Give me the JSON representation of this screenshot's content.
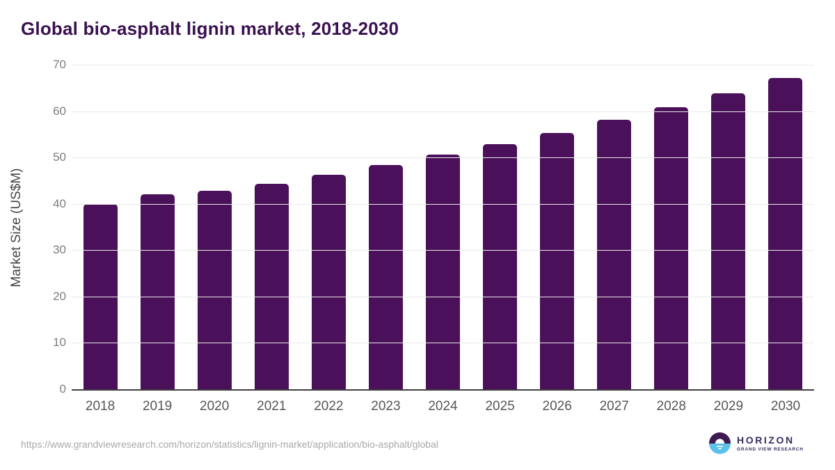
{
  "page": {
    "background": "#ffffff"
  },
  "header": {
    "title": "Global bio-asphalt lignin market, 2018-2030",
    "title_color": "#3a104f"
  },
  "chart_data": {
    "type": "bar",
    "title": "Global bio-asphalt lignin market, 2018-2030",
    "categories": [
      "2018",
      "2019",
      "2020",
      "2021",
      "2022",
      "2023",
      "2024",
      "2025",
      "2026",
      "2027",
      "2028",
      "2029",
      "2030"
    ],
    "values": [
      39.9,
      42.0,
      42.8,
      44.3,
      46.2,
      48.4,
      50.6,
      52.9,
      55.3,
      58.1,
      60.9,
      63.9,
      67.2
    ],
    "xlabel": "",
    "ylabel": "Market Size (US$M)",
    "ylim": [
      0,
      70
    ],
    "yticks": [
      0,
      10,
      20,
      30,
      40,
      50,
      60,
      70
    ],
    "grid": true,
    "legend": "none",
    "bar_color": "#4a1059",
    "gridline_color": "#e9e9e9",
    "axis_line_color": "#3f3f3f",
    "ytick_label_color": "#7c7c7c",
    "xtick_label_color": "#565656"
  },
  "footer": {
    "source_url": "https://www.grandviewresearch.com/horizon/statistics/lignin-market/application/bio-asphalt/global",
    "logo": {
      "wordmark": "HORIZON",
      "subtitle": "GRAND VIEW RESEARCH",
      "icon_top_color": "#3d1a52",
      "icon_bottom_color": "#5bc1e8",
      "text_color": "#3a2a60"
    }
  }
}
